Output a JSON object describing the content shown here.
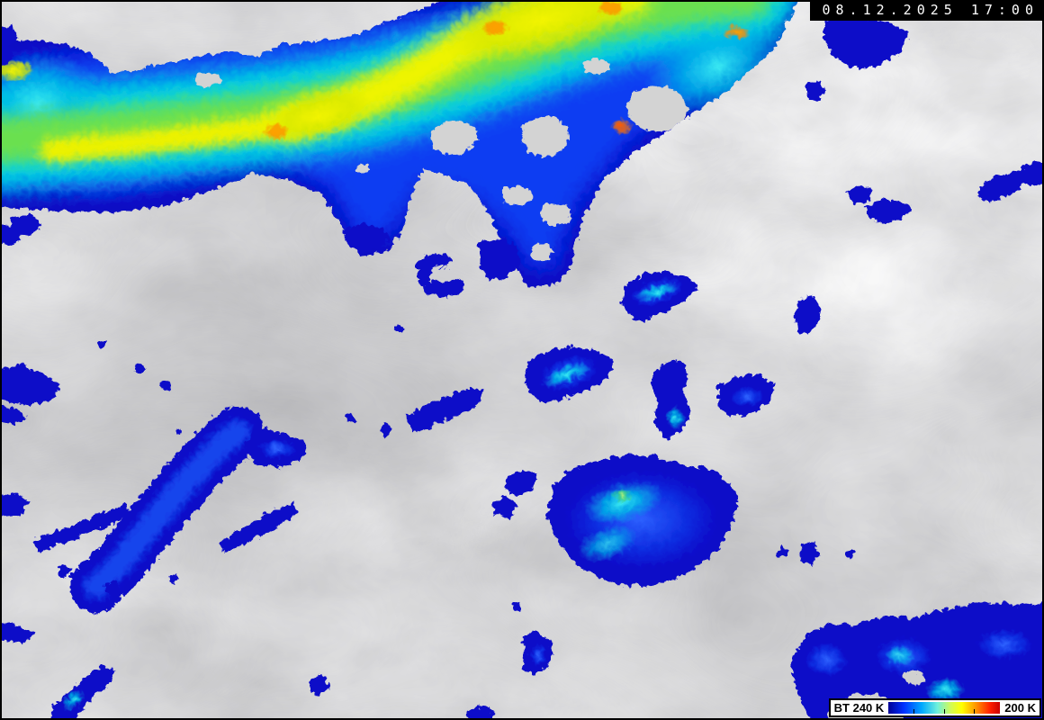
{
  "header": {
    "timestamp": "08.12.2025 17:00"
  },
  "legend": {
    "label_min": "BT 240 K",
    "label_max": "200 K",
    "gradient_stops": [
      "#000096 0%",
      "#0030ff 14%",
      "#00a8ff 30%",
      "#6ef0dc 44%",
      "#d2fa55 56%",
      "#ffff00 66%",
      "#ff9000 79%",
      "#ff2000 91%",
      "#c80000 100%"
    ],
    "tick_positions_pct": [
      22,
      50,
      76
    ]
  },
  "palette": {
    "background_gray": "#c4c4c4",
    "cold_dark_blue": "#0a0ac8",
    "cold_blue": "#0b3cf2",
    "cold_cyan": "#00d2e6",
    "cold_green": "#6ae050",
    "cold_yellow": "#f0f200",
    "cold_orange": "#ffa000",
    "cold_red_orange": "#ff5a00"
  }
}
